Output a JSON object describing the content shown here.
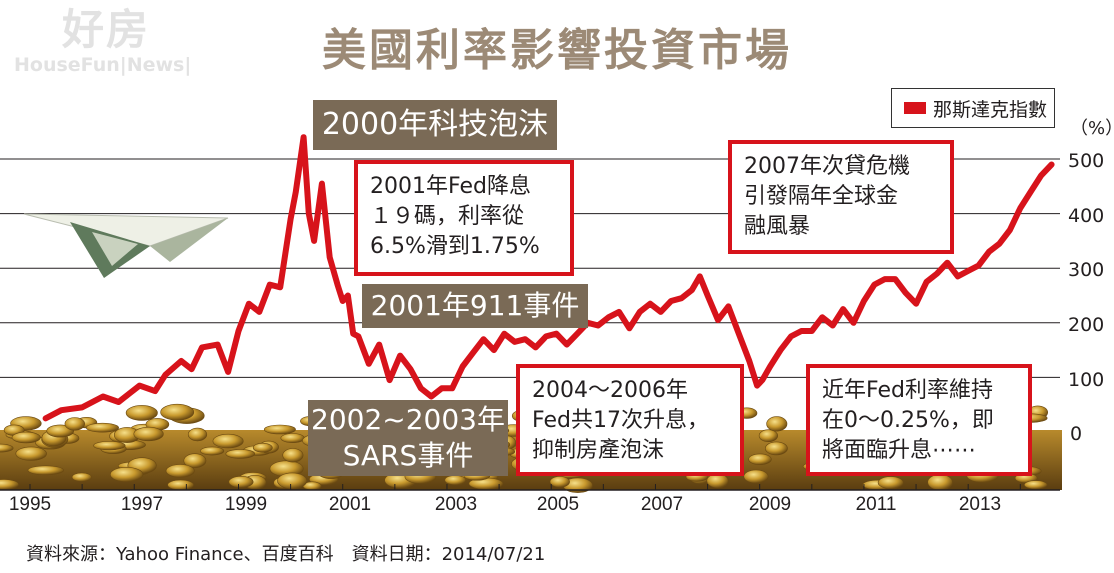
{
  "logo": {
    "main": "好房",
    "sub": "HouseFun|News|"
  },
  "title": "美國利率影響投資市場",
  "legend": {
    "label": "那斯達克指數",
    "color": "#d7131b"
  },
  "chart_data": {
    "type": "line",
    "title": "美國利率影響投資市場",
    "unit_label": "（%）",
    "ylim": [
      -50,
      550
    ],
    "yticks": [
      0,
      100,
      200,
      300,
      400,
      500
    ],
    "ytick_labels": [
      "0",
      "100",
      "200",
      "300",
      "400",
      "500"
    ],
    "xlim": [
      1995,
      2014.8
    ],
    "xticks": [
      1995,
      1997,
      1999,
      2001,
      2003,
      2005,
      2007,
      2009,
      2011,
      2013
    ],
    "xtick_labels": [
      "1995",
      "1997",
      "1999",
      "2001",
      "2003",
      "2005",
      "2007",
      "2009",
      "2011",
      "2013"
    ],
    "grid": true,
    "series": [
      {
        "name": "那斯達克指數",
        "color": "#d7131b",
        "x": [
          1995.3,
          1995.6,
          1996.0,
          1996.4,
          1996.7,
          1996.9,
          1997.1,
          1997.4,
          1997.6,
          1997.9,
          1998.1,
          1998.3,
          1998.6,
          1998.8,
          1999.0,
          1999.2,
          1999.4,
          1999.6,
          1999.8,
          2000.0,
          2000.1,
          2000.25,
          2000.35,
          2000.45,
          2000.6,
          2000.75,
          2000.9,
          2001.0,
          2001.1,
          2001.2,
          2001.3,
          2001.5,
          2001.7,
          2001.9,
          2002.1,
          2002.3,
          2002.5,
          2002.7,
          2002.9,
          2003.1,
          2003.3,
          2003.5,
          2003.7,
          2003.9,
          2004.1,
          2004.3,
          2004.5,
          2004.7,
          2004.9,
          2005.1,
          2005.3,
          2005.5,
          2005.7,
          2005.9,
          2006.1,
          2006.3,
          2006.5,
          2006.7,
          2006.9,
          2007.1,
          2007.3,
          2007.5,
          2007.7,
          2007.85,
          2008.0,
          2008.2,
          2008.4,
          2008.6,
          2008.8,
          2008.95,
          2009.05,
          2009.2,
          2009.4,
          2009.6,
          2009.8,
          2010.0,
          2010.2,
          2010.4,
          2010.6,
          2010.8,
          2011.0,
          2011.2,
          2011.4,
          2011.6,
          2011.8,
          2012.0,
          2012.2,
          2012.4,
          2012.6,
          2012.8,
          2013.0,
          2013.2,
          2013.4,
          2013.6,
          2013.8,
          2014.0,
          2014.2,
          2014.4,
          2014.6
        ],
        "y": [
          25,
          40,
          45,
          65,
          55,
          70,
          85,
          75,
          105,
          130,
          115,
          155,
          160,
          110,
          185,
          235,
          220,
          270,
          265,
          390,
          440,
          540,
          400,
          350,
          455,
          320,
          270,
          240,
          250,
          180,
          175,
          125,
          160,
          95,
          140,
          115,
          80,
          65,
          80,
          80,
          120,
          145,
          170,
          150,
          180,
          165,
          170,
          155,
          175,
          180,
          160,
          180,
          200,
          195,
          210,
          220,
          190,
          220,
          235,
          220,
          240,
          245,
          260,
          285,
          250,
          205,
          230,
          180,
          130,
          85,
          95,
          120,
          150,
          175,
          185,
          185,
          210,
          195,
          225,
          200,
          240,
          270,
          280,
          280,
          255,
          235,
          275,
          290,
          310,
          285,
          295,
          305,
          330,
          345,
          370,
          410,
          440,
          470,
          490
        ]
      }
    ]
  },
  "annotations": {
    "tech_bubble": "2000年科技泡沫",
    "fed_cut": "2001年Fed降息\n１９碼，利率從\n6.5%滑到1.75%",
    "nine_eleven": "2001年911事件",
    "sars": "2002~2003年\nSARS事件",
    "fed_hike": "2004～2006年\nFed共17次升息，\n抑制房產泡沫",
    "subprime": "2007年次貸危機\n引發隔年全球金\n融風暴",
    "recent": "近年Fed利率維持\n在0～0.25%，即\n將面臨升息⋯⋯"
  },
  "source": "資料來源：Yahoo Finance、百度百科　資料日期：2014/07/21"
}
